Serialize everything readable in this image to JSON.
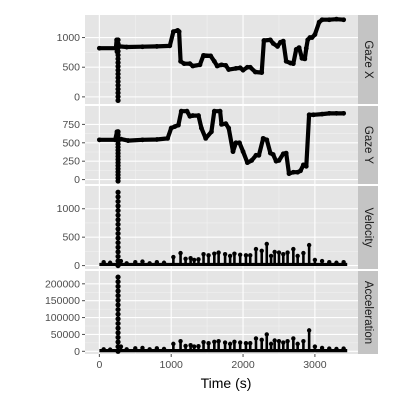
{
  "chart_data": {
    "type": "scatter",
    "xlabel": "Time (s)",
    "x_ticks": [
      0,
      1000,
      2000,
      3000
    ],
    "xlim": [
      -200,
      3600
    ],
    "colors": {
      "panel_bg": "#e5e5e5",
      "grid": "#ffffff",
      "strip_bg": "#c4c4c4",
      "points": "#000000"
    },
    "panels": [
      {
        "strip": "Gaze X",
        "ylim": [
          -120,
          1380
        ],
        "y_ticks": [
          0,
          500,
          1000
        ],
        "y_tick_labels": [
          "0",
          "500",
          "1000"
        ],
        "trace": [
          [
            0,
            820
          ],
          [
            230,
            820
          ],
          [
            240,
            960
          ],
          [
            245,
            760
          ],
          [
            250,
            820
          ],
          [
            280,
            850
          ],
          [
            380,
            840
          ],
          [
            600,
            845
          ],
          [
            800,
            850
          ],
          [
            980,
            860
          ],
          [
            1030,
            1100
          ],
          [
            1090,
            1120
          ],
          [
            1110,
            1100
          ],
          [
            1130,
            600
          ],
          [
            1180,
            560
          ],
          [
            1260,
            560
          ],
          [
            1300,
            520
          ],
          [
            1400,
            540
          ],
          [
            1450,
            700
          ],
          [
            1550,
            690
          ],
          [
            1600,
            600
          ],
          [
            1640,
            520
          ],
          [
            1700,
            540
          ],
          [
            1760,
            530
          ],
          [
            1800,
            460
          ],
          [
            1900,
            480
          ],
          [
            1960,
            490
          ],
          [
            2000,
            450
          ],
          [
            2060,
            500
          ],
          [
            2100,
            500
          ],
          [
            2170,
            420
          ],
          [
            2260,
            410
          ],
          [
            2290,
            950
          ],
          [
            2380,
            960
          ],
          [
            2420,
            900
          ],
          [
            2480,
            850
          ],
          [
            2520,
            920
          ],
          [
            2560,
            940
          ],
          [
            2600,
            600
          ],
          [
            2660,
            570
          ],
          [
            2700,
            560
          ],
          [
            2740,
            800
          ],
          [
            2780,
            830
          ],
          [
            2820,
            650
          ],
          [
            2860,
            640
          ],
          [
            2880,
            820
          ],
          [
            2900,
            960
          ],
          [
            2930,
            1000
          ],
          [
            2960,
            1000
          ],
          [
            3000,
            1050
          ],
          [
            3060,
            1260
          ],
          [
            3100,
            1300
          ],
          [
            3200,
            1300
          ],
          [
            3300,
            1310
          ],
          [
            3400,
            1300
          ]
        ],
        "spike": {
          "x": 260,
          "y_from": -60,
          "y_to": 960
        }
      },
      {
        "strip": "Gaze Y",
        "ylim": [
          -60,
          1000
        ],
        "y_ticks": [
          0,
          250,
          500,
          750
        ],
        "y_tick_labels": [
          "0",
          "250",
          "500",
          "750"
        ],
        "trace": [
          [
            0,
            540
          ],
          [
            220,
            540
          ],
          [
            245,
            650
          ],
          [
            250,
            540
          ],
          [
            300,
            550
          ],
          [
            400,
            530
          ],
          [
            600,
            540
          ],
          [
            800,
            545
          ],
          [
            950,
            560
          ],
          [
            1000,
            700
          ],
          [
            1050,
            720
          ],
          [
            1100,
            740
          ],
          [
            1140,
            930
          ],
          [
            1220,
            930
          ],
          [
            1260,
            860
          ],
          [
            1300,
            870
          ],
          [
            1380,
            870
          ],
          [
            1420,
            700
          ],
          [
            1480,
            560
          ],
          [
            1560,
            650
          ],
          [
            1600,
            930
          ],
          [
            1680,
            930
          ],
          [
            1700,
            750
          ],
          [
            1760,
            760
          ],
          [
            1800,
            700
          ],
          [
            1860,
            380
          ],
          [
            1900,
            500
          ],
          [
            1950,
            500
          ],
          [
            2000,
            380
          ],
          [
            2060,
            230
          ],
          [
            2120,
            260
          ],
          [
            2180,
            330
          ],
          [
            2220,
            330
          ],
          [
            2280,
            560
          ],
          [
            2330,
            540
          ],
          [
            2380,
            360
          ],
          [
            2420,
            340
          ],
          [
            2460,
            250
          ],
          [
            2500,
            260
          ],
          [
            2560,
            350
          ],
          [
            2600,
            360
          ],
          [
            2640,
            80
          ],
          [
            2700,
            100
          ],
          [
            2760,
            100
          ],
          [
            2800,
            120
          ],
          [
            2840,
            200
          ],
          [
            2880,
            180
          ],
          [
            2920,
            880
          ],
          [
            2980,
            880
          ],
          [
            3100,
            890
          ],
          [
            3200,
            900
          ],
          [
            3300,
            900
          ],
          [
            3400,
            900
          ]
        ],
        "spike": {
          "x": 260,
          "y_from": -20,
          "y_to": 650
        }
      },
      {
        "strip": "Velocity",
        "ylim": [
          -60,
          1400
        ],
        "y_ticks": [
          0,
          500,
          1000
        ],
        "y_tick_labels": [
          "0",
          "500",
          "1000"
        ],
        "baseline": 20,
        "peaks": [
          [
            60,
            60
          ],
          [
            150,
            50
          ],
          [
            300,
            80
          ],
          [
            380,
            40
          ],
          [
            500,
            60
          ],
          [
            600,
            70
          ],
          [
            700,
            40
          ],
          [
            800,
            60
          ],
          [
            900,
            50
          ],
          [
            1030,
            150
          ],
          [
            1130,
            220
          ],
          [
            1200,
            120
          ],
          [
            1270,
            130
          ],
          [
            1320,
            100
          ],
          [
            1380,
            110
          ],
          [
            1450,
            200
          ],
          [
            1520,
            180
          ],
          [
            1600,
            210
          ],
          [
            1660,
            230
          ],
          [
            1750,
            200
          ],
          [
            1820,
            170
          ],
          [
            1880,
            210
          ],
          [
            1960,
            190
          ],
          [
            2040,
            180
          ],
          [
            2100,
            180
          ],
          [
            2180,
            290
          ],
          [
            2260,
            260
          ],
          [
            2330,
            380
          ],
          [
            2390,
            170
          ],
          [
            2440,
            240
          ],
          [
            2500,
            230
          ],
          [
            2560,
            200
          ],
          [
            2620,
            230
          ],
          [
            2700,
            290
          ],
          [
            2760,
            170
          ],
          [
            2840,
            220
          ],
          [
            2920,
            360
          ],
          [
            3000,
            100
          ],
          [
            3100,
            80
          ],
          [
            3200,
            60
          ],
          [
            3300,
            50
          ],
          [
            3400,
            60
          ]
        ],
        "spike": {
          "x": 260,
          "y_from": 0,
          "y_to": 1290
        }
      },
      {
        "strip": "Acceleration",
        "ylim": [
          -8000,
          238000
        ],
        "y_ticks": [
          0,
          50000,
          100000,
          150000,
          200000
        ],
        "y_tick_labels": [
          "0",
          "50000",
          "100000",
          "150000",
          "200000"
        ],
        "baseline": 2000,
        "peaks": [
          [
            60,
            6000
          ],
          [
            150,
            5000
          ],
          [
            300,
            14000
          ],
          [
            380,
            6000
          ],
          [
            500,
            9000
          ],
          [
            600,
            10000
          ],
          [
            700,
            6000
          ],
          [
            800,
            9000
          ],
          [
            900,
            7000
          ],
          [
            1030,
            22000
          ],
          [
            1130,
            30000
          ],
          [
            1200,
            16000
          ],
          [
            1270,
            18000
          ],
          [
            1320,
            14000
          ],
          [
            1380,
            15000
          ],
          [
            1450,
            27000
          ],
          [
            1520,
            24000
          ],
          [
            1600,
            28000
          ],
          [
            1660,
            30000
          ],
          [
            1750,
            26000
          ],
          [
            1820,
            22000
          ],
          [
            1880,
            28000
          ],
          [
            1960,
            26000
          ],
          [
            2040,
            24000
          ],
          [
            2100,
            24000
          ],
          [
            2180,
            38000
          ],
          [
            2260,
            34000
          ],
          [
            2330,
            50000
          ],
          [
            2390,
            22000
          ],
          [
            2440,
            32000
          ],
          [
            2500,
            30000
          ],
          [
            2560,
            26000
          ],
          [
            2620,
            30000
          ],
          [
            2700,
            38000
          ],
          [
            2760,
            22000
          ],
          [
            2840,
            30000
          ],
          [
            2920,
            62000
          ],
          [
            3000,
            14000
          ],
          [
            3100,
            10000
          ],
          [
            3200,
            8000
          ],
          [
            3300,
            7000
          ],
          [
            3400,
            8000
          ]
        ],
        "spike": {
          "x": 260,
          "y_from": 0,
          "y_to": 220000
        }
      }
    ]
  }
}
